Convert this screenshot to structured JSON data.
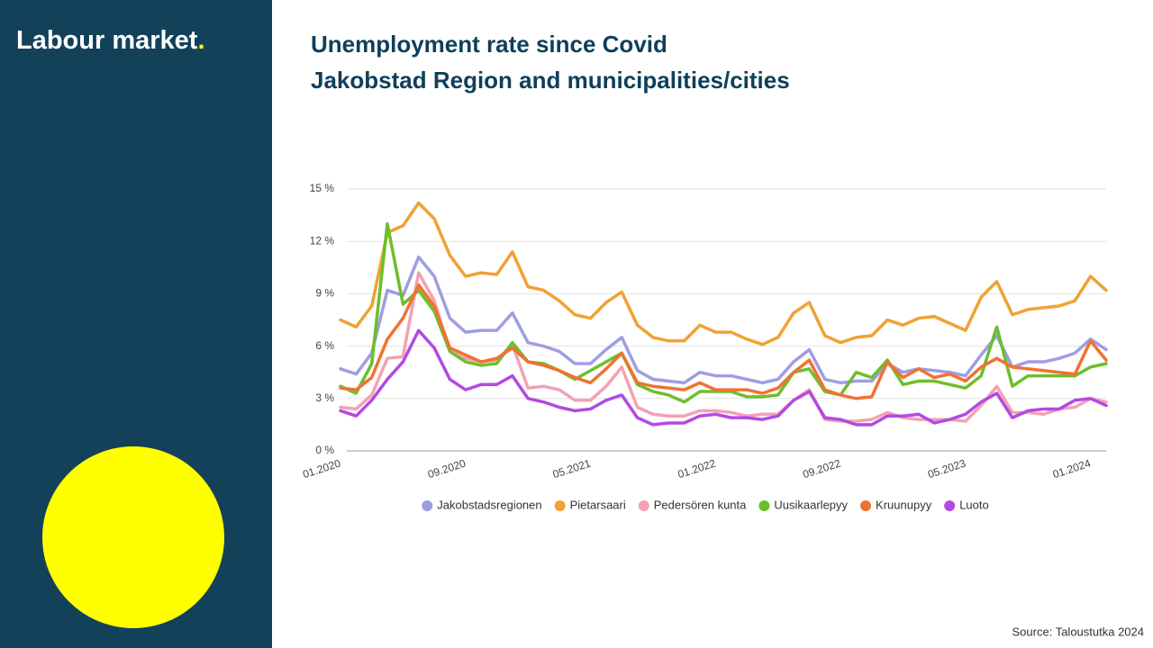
{
  "sidebar": {
    "title": "Labour market",
    "title_dot": "."
  },
  "source": "Source: Taloustutka 2024",
  "chart_data": {
    "type": "line",
    "title": "Unemployment rate since Covid",
    "subtitle": "Jakobstad Region and municipalities/cities",
    "categories": [
      "01.2020",
      null,
      null,
      null,
      null,
      null,
      null,
      null,
      "09.2020",
      null,
      null,
      null,
      null,
      null,
      null,
      null,
      "05.2021",
      null,
      null,
      null,
      null,
      null,
      null,
      null,
      "01.2022",
      null,
      null,
      null,
      null,
      null,
      null,
      null,
      "09.2022",
      null,
      null,
      null,
      null,
      null,
      null,
      null,
      "05.2023",
      null,
      null,
      null,
      null,
      null,
      null,
      null,
      "01.2024",
      null
    ],
    "ylim": [
      0,
      15
    ],
    "yticks": [
      {
        "value": 0,
        "label": "0 %"
      },
      {
        "value": 3,
        "label": "3 %"
      },
      {
        "value": 6,
        "label": "6 %"
      },
      {
        "value": 9,
        "label": "9 %"
      },
      {
        "value": 12,
        "label": "12 %"
      },
      {
        "value": 15,
        "label": "15 %"
      }
    ],
    "grid": true,
    "legend": "bottom",
    "series": [
      {
        "name": "Jakobstadsregionen",
        "color": "#9d9ee2",
        "values": [
          4.7,
          4.4,
          5.6,
          9.2,
          8.9,
          11.1,
          10.0,
          7.6,
          6.8,
          6.9,
          6.9,
          7.9,
          6.2,
          6.0,
          5.7,
          5.0,
          5.0,
          5.8,
          6.5,
          4.6,
          4.1,
          4.0,
          3.9,
          4.5,
          4.3,
          4.3,
          4.1,
          3.9,
          4.1,
          5.1,
          5.8,
          4.1,
          3.9,
          4.0,
          4.0,
          5.0,
          4.5,
          4.7,
          4.6,
          4.5,
          4.3,
          5.5,
          6.6,
          4.8,
          5.1,
          5.1,
          5.3,
          5.6,
          6.4,
          5.8
        ]
      },
      {
        "name": "Pietarsaari",
        "color": "#f0a232",
        "values": [
          7.5,
          7.1,
          8.3,
          12.5,
          12.9,
          14.2,
          13.3,
          11.2,
          10.0,
          10.2,
          10.1,
          11.4,
          9.4,
          9.2,
          8.6,
          7.8,
          7.6,
          8.5,
          9.1,
          7.2,
          6.5,
          6.3,
          6.3,
          7.2,
          6.8,
          6.8,
          6.4,
          6.1,
          6.5,
          7.9,
          8.5,
          6.6,
          6.2,
          6.5,
          6.6,
          7.5,
          7.2,
          7.6,
          7.7,
          7.3,
          6.9,
          8.8,
          9.7,
          7.8,
          8.1,
          8.2,
          8.3,
          8.6,
          10.0,
          9.2
        ]
      },
      {
        "name": "Pedersören kunta",
        "color": "#f2a2b4",
        "values": [
          2.5,
          2.4,
          3.2,
          5.3,
          5.4,
          10.2,
          8.6,
          5.7,
          5.3,
          5.1,
          5.2,
          6.1,
          3.6,
          3.7,
          3.5,
          2.9,
          2.9,
          3.7,
          4.8,
          2.5,
          2.1,
          2.0,
          2.0,
          2.3,
          2.3,
          2.2,
          2.0,
          2.1,
          2.1,
          2.9,
          3.5,
          1.8,
          1.7,
          1.7,
          1.8,
          2.2,
          1.9,
          1.8,
          1.8,
          1.8,
          1.7,
          2.6,
          3.7,
          2.2,
          2.2,
          2.1,
          2.4,
          2.5,
          3.0,
          2.8
        ]
      },
      {
        "name": "Uusikaarlepyy",
        "color": "#6cbf2c",
        "values": [
          3.7,
          3.3,
          5.0,
          13.0,
          8.4,
          9.2,
          8.0,
          5.7,
          5.1,
          4.9,
          5.0,
          6.2,
          5.1,
          5.0,
          4.6,
          4.1,
          4.6,
          5.1,
          5.6,
          3.8,
          3.4,
          3.2,
          2.8,
          3.4,
          3.4,
          3.4,
          3.1,
          3.1,
          3.2,
          4.5,
          4.7,
          3.4,
          3.2,
          4.5,
          4.2,
          5.2,
          3.8,
          4.0,
          4.0,
          3.8,
          3.6,
          4.3,
          7.1,
          3.7,
          4.3,
          4.3,
          4.3,
          4.3,
          4.8,
          5.0
        ]
      },
      {
        "name": "Kruunupyy",
        "color": "#f07232",
        "values": [
          3.6,
          3.5,
          4.2,
          6.4,
          7.6,
          9.5,
          8.3,
          5.9,
          5.5,
          5.1,
          5.3,
          5.9,
          5.1,
          4.9,
          4.6,
          4.2,
          3.9,
          4.7,
          5.6,
          3.9,
          3.7,
          3.6,
          3.5,
          3.9,
          3.5,
          3.5,
          3.5,
          3.3,
          3.6,
          4.5,
          5.2,
          3.5,
          3.2,
          3.0,
          3.1,
          5.1,
          4.2,
          4.7,
          4.2,
          4.4,
          4.0,
          4.8,
          5.3,
          4.8,
          4.7,
          4.6,
          4.5,
          4.4,
          6.3,
          5.2
        ]
      },
      {
        "name": "Luoto",
        "color": "#b24ae2",
        "values": [
          2.3,
          2.0,
          2.9,
          4.1,
          5.1,
          6.9,
          5.9,
          4.1,
          3.5,
          3.8,
          3.8,
          4.3,
          3.0,
          2.8,
          2.5,
          2.3,
          2.4,
          2.9,
          3.2,
          1.9,
          1.5,
          1.6,
          1.6,
          2.0,
          2.1,
          1.9,
          1.9,
          1.8,
          2.0,
          2.9,
          3.4,
          1.9,
          1.8,
          1.5,
          1.5,
          2.0,
          2.0,
          2.1,
          1.6,
          1.8,
          2.1,
          2.8,
          3.3,
          1.9,
          2.3,
          2.4,
          2.4,
          2.9,
          3.0,
          2.6
        ]
      }
    ]
  }
}
